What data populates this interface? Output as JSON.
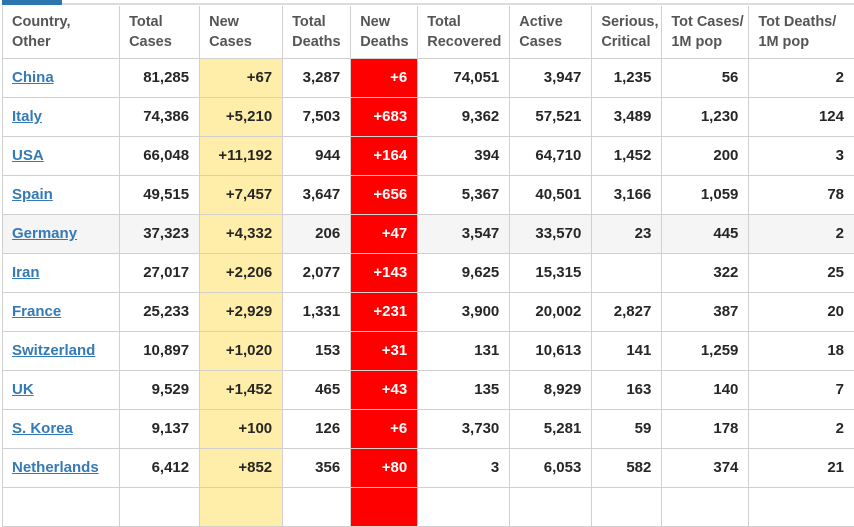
{
  "colors": {
    "accent_blue": "#2a76ad",
    "new_cases_bg": "#ffeeaa",
    "new_deaths_bg": "#ff0000",
    "link_blue": "#337ab7",
    "highlight_row_bg": "#f5f5f5"
  },
  "table": {
    "columns": [
      {
        "id": "country",
        "line1": "Country,",
        "line2": "Other"
      },
      {
        "id": "total-cases",
        "line1": "Total",
        "line2": "Cases"
      },
      {
        "id": "new-cases",
        "line1": "New",
        "line2": "Cases"
      },
      {
        "id": "total-deaths",
        "line1": "Total",
        "line2": "Deaths"
      },
      {
        "id": "new-deaths",
        "line1": "New",
        "line2": "Deaths"
      },
      {
        "id": "total-recovered",
        "line1": "Total",
        "line2": "Recovered"
      },
      {
        "id": "active-cases",
        "line1": "Active",
        "line2": "Cases"
      },
      {
        "id": "serious-critical",
        "line1": "Serious,",
        "line2": "Critical"
      },
      {
        "id": "cases-per-1m",
        "line1": "Tot Cases/",
        "line2": "1M pop"
      },
      {
        "id": "deaths-per-1m",
        "line1": "Tot Deaths/",
        "line2": "1M pop"
      }
    ],
    "rows": [
      {
        "country": "China",
        "total_cases": "81,285",
        "new_cases": "+67",
        "total_deaths": "3,287",
        "new_deaths": "+6",
        "total_recovered": "74,051",
        "active_cases": "3,947",
        "serious_critical": "1,235",
        "cases_per_1m": "56",
        "deaths_per_1m": "2",
        "highlighted": false
      },
      {
        "country": "Italy",
        "total_cases": "74,386",
        "new_cases": "+5,210",
        "total_deaths": "7,503",
        "new_deaths": "+683",
        "total_recovered": "9,362",
        "active_cases": "57,521",
        "serious_critical": "3,489",
        "cases_per_1m": "1,230",
        "deaths_per_1m": "124",
        "highlighted": false
      },
      {
        "country": "USA",
        "total_cases": "66,048",
        "new_cases": "+11,192",
        "total_deaths": "944",
        "new_deaths": "+164",
        "total_recovered": "394",
        "active_cases": "64,710",
        "serious_critical": "1,452",
        "cases_per_1m": "200",
        "deaths_per_1m": "3",
        "highlighted": false
      },
      {
        "country": "Spain",
        "total_cases": "49,515",
        "new_cases": "+7,457",
        "total_deaths": "3,647",
        "new_deaths": "+656",
        "total_recovered": "5,367",
        "active_cases": "40,501",
        "serious_critical": "3,166",
        "cases_per_1m": "1,059",
        "deaths_per_1m": "78",
        "highlighted": false
      },
      {
        "country": "Germany",
        "total_cases": "37,323",
        "new_cases": "+4,332",
        "total_deaths": "206",
        "new_deaths": "+47",
        "total_recovered": "3,547",
        "active_cases": "33,570",
        "serious_critical": "23",
        "cases_per_1m": "445",
        "deaths_per_1m": "2",
        "highlighted": true
      },
      {
        "country": "Iran",
        "total_cases": "27,017",
        "new_cases": "+2,206",
        "total_deaths": "2,077",
        "new_deaths": "+143",
        "total_recovered": "9,625",
        "active_cases": "15,315",
        "serious_critical": "",
        "cases_per_1m": "322",
        "deaths_per_1m": "25",
        "highlighted": false
      },
      {
        "country": "France",
        "total_cases": "25,233",
        "new_cases": "+2,929",
        "total_deaths": "1,331",
        "new_deaths": "+231",
        "total_recovered": "3,900",
        "active_cases": "20,002",
        "serious_critical": "2,827",
        "cases_per_1m": "387",
        "deaths_per_1m": "20",
        "highlighted": false
      },
      {
        "country": "Switzerland",
        "total_cases": "10,897",
        "new_cases": "+1,020",
        "total_deaths": "153",
        "new_deaths": "+31",
        "total_recovered": "131",
        "active_cases": "10,613",
        "serious_critical": "141",
        "cases_per_1m": "1,259",
        "deaths_per_1m": "18",
        "highlighted": false
      },
      {
        "country": "UK",
        "total_cases": "9,529",
        "new_cases": "+1,452",
        "total_deaths": "465",
        "new_deaths": "+43",
        "total_recovered": "135",
        "active_cases": "8,929",
        "serious_critical": "163",
        "cases_per_1m": "140",
        "deaths_per_1m": "7",
        "highlighted": false
      },
      {
        "country": "S. Korea",
        "total_cases": "9,137",
        "new_cases": "+100",
        "total_deaths": "126",
        "new_deaths": "+6",
        "total_recovered": "3,730",
        "active_cases": "5,281",
        "serious_critical": "59",
        "cases_per_1m": "178",
        "deaths_per_1m": "2",
        "highlighted": false
      },
      {
        "country": "Netherlands",
        "total_cases": "6,412",
        "new_cases": "+852",
        "total_deaths": "356",
        "new_deaths": "+80",
        "total_recovered": "3",
        "active_cases": "6,053",
        "serious_critical": "582",
        "cases_per_1m": "374",
        "deaths_per_1m": "21",
        "highlighted": false
      }
    ],
    "partial_next_row": true
  }
}
